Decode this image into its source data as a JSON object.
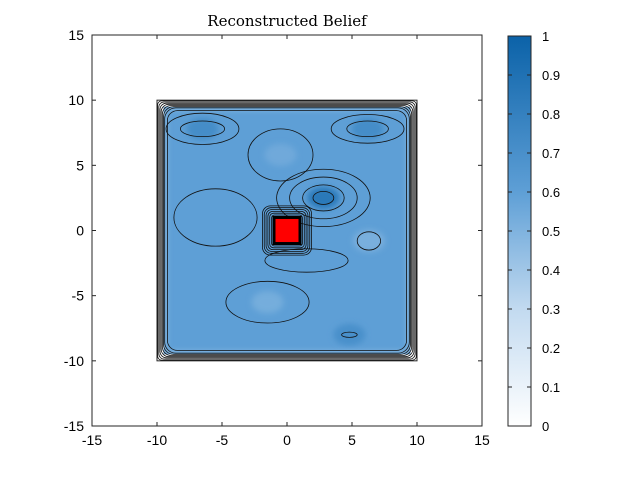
{
  "chart_data": {
    "type": "heatmap",
    "title": "Reconstructed Belief",
    "xlabel": "",
    "ylabel": "",
    "xlim": [
      -15,
      15
    ],
    "ylim": [
      -15,
      15
    ],
    "xticks": [
      "-15",
      "-10",
      "-5",
      "0",
      "5",
      "10",
      "15"
    ],
    "yticks": [
      "15",
      "10",
      "5",
      "0",
      "-5",
      "-10",
      "-15"
    ],
    "colorbar": {
      "range": [
        0,
        1
      ],
      "ticks": [
        "1",
        "0.9",
        "0.8",
        "0.7",
        "0.6",
        "0.5",
        "0.4",
        "0.3",
        "0.2",
        "0.1",
        "0"
      ],
      "colormap_low": "#ffffff",
      "colormap_high": "#0b62a8"
    },
    "boundary_square": {
      "x": [
        -10,
        10
      ],
      "y": [
        -10,
        10
      ]
    },
    "field_region": {
      "x": [
        -9.5,
        9.5
      ],
      "y": [
        -9.5,
        9.5
      ]
    },
    "base_value": 0.6,
    "features": [
      {
        "name": "upper-left hot spot",
        "x": -6.5,
        "y": 7.8,
        "value": 0.72
      },
      {
        "name": "upper-right hot spot",
        "x": 6.2,
        "y": 7.8,
        "value": 0.72
      },
      {
        "name": "upper-center cool patch",
        "x": -0.5,
        "y": 5.8,
        "value": 0.55
      },
      {
        "name": "peak near obstacle",
        "x": 2.8,
        "y": 2.5,
        "value": 0.85
      },
      {
        "name": "right-center cool patch",
        "x": 6.3,
        "y": -0.8,
        "value": 0.52
      },
      {
        "name": "lower-center cool patch",
        "x": -1.5,
        "y": -5.5,
        "value": 0.53
      },
      {
        "name": "lower-right hot spot",
        "x": 4.8,
        "y": -8.0,
        "value": 0.7
      }
    ],
    "obstacle": {
      "x": [
        -1,
        1
      ],
      "y": [
        -1,
        1
      ],
      "color": "#ff0000"
    }
  }
}
